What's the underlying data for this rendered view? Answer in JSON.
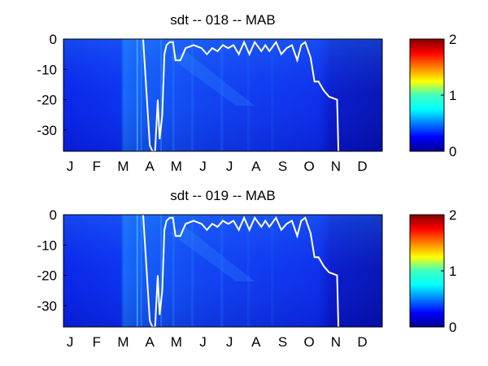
{
  "chart_data": [
    {
      "type": "heatmap",
      "title": "sdt -- 018 -- MAB",
      "x_tick_labels": [
        "J",
        "F",
        "M",
        "A",
        "M",
        "J",
        "J",
        "A",
        "S",
        "O",
        "N",
        "D"
      ],
      "y_tick_labels": [
        "0",
        "-10",
        "-20",
        "-30"
      ],
      "ylim": [
        -37,
        0
      ],
      "colorbar": {
        "ticks": [
          "0",
          "1",
          "2"
        ],
        "range": [
          0,
          2
        ],
        "colormap": "jet"
      },
      "contour_line": {
        "color": "#ffffff",
        "month_points": [
          [
            3.0,
            0
          ],
          [
            3.25,
            -35
          ],
          [
            3.35,
            -37
          ],
          [
            3.45,
            -37
          ],
          [
            3.55,
            -20
          ],
          [
            3.62,
            -33
          ],
          [
            3.72,
            -25
          ],
          [
            3.8,
            -5
          ],
          [
            3.88,
            -2
          ],
          [
            4.0,
            -1
          ],
          [
            4.12,
            -1
          ],
          [
            4.22,
            -7
          ],
          [
            4.4,
            -7
          ],
          [
            4.6,
            -3
          ],
          [
            4.9,
            -2
          ],
          [
            5.2,
            -3
          ],
          [
            5.4,
            -5
          ],
          [
            5.6,
            -3
          ],
          [
            5.8,
            -4
          ],
          [
            6.0,
            -2
          ],
          [
            6.2,
            -3
          ],
          [
            6.4,
            -2
          ],
          [
            6.6,
            -5
          ],
          [
            6.8,
            -1
          ],
          [
            7.0,
            -5
          ],
          [
            7.2,
            -1
          ],
          [
            7.45,
            -4
          ],
          [
            7.6,
            -2
          ],
          [
            7.75,
            -4
          ],
          [
            8.0,
            -1
          ],
          [
            8.2,
            -5
          ],
          [
            8.4,
            -3
          ],
          [
            8.6,
            -2
          ],
          [
            8.8,
            -7
          ],
          [
            8.95,
            -2
          ],
          [
            9.1,
            -1
          ],
          [
            9.3,
            -6
          ],
          [
            9.45,
            -14
          ],
          [
            9.6,
            -14
          ],
          [
            9.8,
            -17
          ],
          [
            10.0,
            -19
          ],
          [
            10.3,
            -20
          ],
          [
            10.35,
            -37
          ]
        ]
      }
    },
    {
      "type": "heatmap",
      "title": "sdt -- 019 -- MAB",
      "x_tick_labels": [
        "J",
        "F",
        "M",
        "A",
        "M",
        "J",
        "J",
        "A",
        "S",
        "O",
        "N",
        "D"
      ],
      "y_tick_labels": [
        "0",
        "-10",
        "-20",
        "-30"
      ],
      "ylim": [
        -37,
        0
      ],
      "colorbar": {
        "ticks": [
          "0",
          "1",
          "2"
        ],
        "range": [
          0,
          2
        ],
        "colormap": "jet"
      },
      "contour_line": {
        "color": "#ffffff",
        "month_points": [
          [
            3.0,
            0
          ],
          [
            3.25,
            -35
          ],
          [
            3.35,
            -37
          ],
          [
            3.45,
            -37
          ],
          [
            3.55,
            -20
          ],
          [
            3.62,
            -33
          ],
          [
            3.72,
            -25
          ],
          [
            3.8,
            -5
          ],
          [
            3.88,
            -2
          ],
          [
            4.0,
            -1
          ],
          [
            4.12,
            -1
          ],
          [
            4.22,
            -7
          ],
          [
            4.4,
            -7
          ],
          [
            4.6,
            -3
          ],
          [
            4.9,
            -2
          ],
          [
            5.2,
            -3
          ],
          [
            5.4,
            -5
          ],
          [
            5.6,
            -3
          ],
          [
            5.8,
            -4
          ],
          [
            6.0,
            -2
          ],
          [
            6.2,
            -3
          ],
          [
            6.4,
            -2
          ],
          [
            6.6,
            -5
          ],
          [
            6.8,
            -1
          ],
          [
            7.0,
            -5
          ],
          [
            7.2,
            -1
          ],
          [
            7.45,
            -4
          ],
          [
            7.6,
            -2
          ],
          [
            7.75,
            -4
          ],
          [
            8.0,
            -1
          ],
          [
            8.2,
            -5
          ],
          [
            8.4,
            -3
          ],
          [
            8.6,
            -2
          ],
          [
            8.8,
            -7
          ],
          [
            8.95,
            -2
          ],
          [
            9.1,
            -1
          ],
          [
            9.3,
            -6
          ],
          [
            9.45,
            -14
          ],
          [
            9.6,
            -14
          ],
          [
            9.8,
            -17
          ],
          [
            10.0,
            -19
          ],
          [
            10.3,
            -20
          ],
          [
            10.35,
            -37
          ]
        ]
      }
    }
  ]
}
